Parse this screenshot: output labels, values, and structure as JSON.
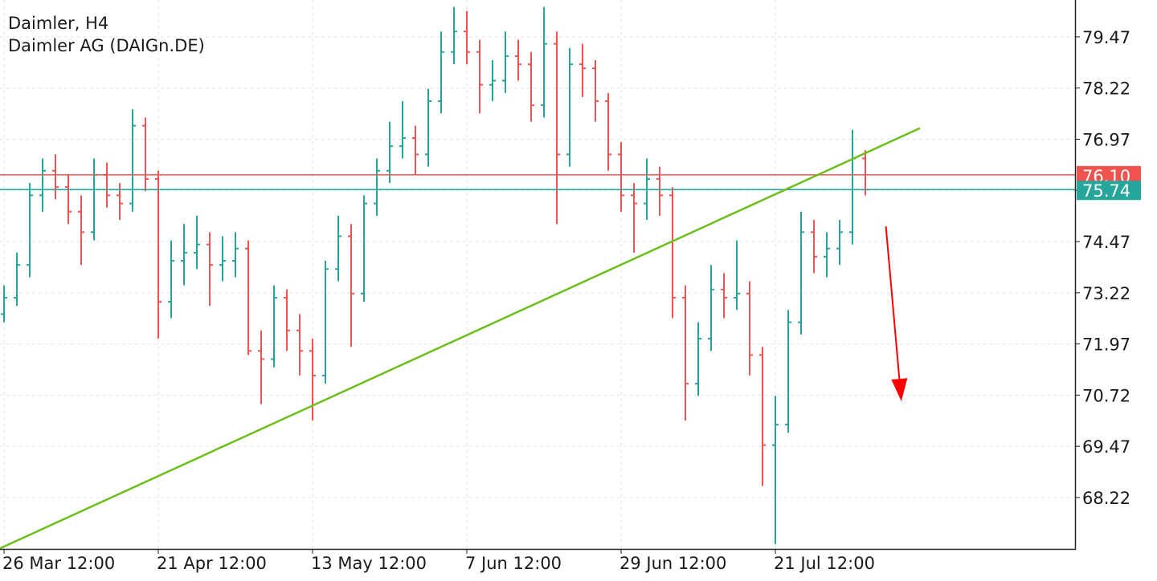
{
  "chart_data": {
    "type": "ohlc",
    "title": "Daimler, H4",
    "subtitle": "Daimler AG (DAIGn.DE)",
    "up_color": "#26a69a",
    "down_color": "#ef5350",
    "categories": [
      "26 Mar 12:00",
      null,
      null,
      null,
      null,
      null,
      null,
      null,
      null,
      null,
      null,
      null,
      "21 Apr 12:00",
      null,
      null,
      null,
      null,
      null,
      null,
      null,
      null,
      null,
      null,
      null,
      "13 May 12:00",
      null,
      null,
      null,
      null,
      null,
      null,
      null,
      null,
      null,
      null,
      null,
      "7 Jun 12:00",
      null,
      null,
      null,
      null,
      null,
      null,
      null,
      null,
      null,
      null,
      null,
      "29 Jun 12:00",
      null,
      null,
      null,
      null,
      null,
      null,
      null,
      null,
      null,
      null,
      null,
      "21 Jul 12:00",
      null,
      null,
      null,
      null,
      null,
      null,
      null
    ],
    "ohlc": [
      [
        72.7,
        73.4,
        72.5,
        73.1
      ],
      [
        73.1,
        74.2,
        72.9,
        73.9
      ],
      [
        73.9,
        75.9,
        73.6,
        75.6
      ],
      [
        75.6,
        76.5,
        75.2,
        76.2
      ],
      [
        76.2,
        76.6,
        75.5,
        75.8
      ],
      [
        75.8,
        76.1,
        74.9,
        75.2
      ],
      [
        75.2,
        75.6,
        73.9,
        74.7
      ],
      [
        74.7,
        76.5,
        74.5,
        76.1
      ],
      [
        76.1,
        76.4,
        75.3,
        75.6
      ],
      [
        75.6,
        75.9,
        75.0,
        75.4
      ],
      [
        75.4,
        77.7,
        75.2,
        77.3
      ],
      [
        77.3,
        77.5,
        75.7,
        76.0
      ],
      [
        76.0,
        76.2,
        72.1,
        73.0
      ],
      [
        73.0,
        74.5,
        72.6,
        74.0
      ],
      [
        74.0,
        74.9,
        73.4,
        74.2
      ],
      [
        74.2,
        75.1,
        73.8,
        74.4
      ],
      [
        74.4,
        74.7,
        72.9,
        73.9
      ],
      [
        73.9,
        74.6,
        73.5,
        74.0
      ],
      [
        74.0,
        74.7,
        73.6,
        74.3
      ],
      [
        74.3,
        74.5,
        71.7,
        71.8
      ],
      [
        71.8,
        72.3,
        70.5,
        71.6
      ],
      [
        71.6,
        73.4,
        71.4,
        73.1
      ],
      [
        73.1,
        73.3,
        71.8,
        72.3
      ],
      [
        72.3,
        72.7,
        71.2,
        71.8
      ],
      [
        71.8,
        72.1,
        70.1,
        71.2
      ],
      [
        71.2,
        74.0,
        71.0,
        73.8
      ],
      [
        73.8,
        75.1,
        73.5,
        74.6
      ],
      [
        74.6,
        74.9,
        71.9,
        73.2
      ],
      [
        73.2,
        75.6,
        73.0,
        75.4
      ],
      [
        75.4,
        76.5,
        75.1,
        76.2
      ],
      [
        76.2,
        77.4,
        75.9,
        76.8
      ],
      [
        76.8,
        77.9,
        76.5,
        77.0
      ],
      [
        77.0,
        77.3,
        76.1,
        76.6
      ],
      [
        76.6,
        78.2,
        76.3,
        77.9
      ],
      [
        77.9,
        79.6,
        77.6,
        79.1
      ],
      [
        79.1,
        80.2,
        78.8,
        79.6
      ],
      [
        79.6,
        80.1,
        78.8,
        79.1
      ],
      [
        79.1,
        79.4,
        77.6,
        78.3
      ],
      [
        78.3,
        78.9,
        77.9,
        78.4
      ],
      [
        78.4,
        79.6,
        78.1,
        79.0
      ],
      [
        79.0,
        79.4,
        78.4,
        78.8
      ],
      [
        78.8,
        79.1,
        77.4,
        77.8
      ],
      [
        77.8,
        80.2,
        77.5,
        79.3
      ],
      [
        79.3,
        79.6,
        74.9,
        76.6
      ],
      [
        76.6,
        79.2,
        76.3,
        78.8
      ],
      [
        78.8,
        79.3,
        78.0,
        78.7
      ],
      [
        78.7,
        78.9,
        77.4,
        77.9
      ],
      [
        77.9,
        78.1,
        76.2,
        76.6
      ],
      [
        76.6,
        76.9,
        75.2,
        75.6
      ],
      [
        75.6,
        75.9,
        74.2,
        75.4
      ],
      [
        75.4,
        76.5,
        75.0,
        76.0
      ],
      [
        76.0,
        76.3,
        75.1,
        75.6
      ],
      [
        75.6,
        75.8,
        72.6,
        73.1
      ],
      [
        73.1,
        73.4,
        70.1,
        71.0
      ],
      [
        71.0,
        72.5,
        70.7,
        72.1
      ],
      [
        72.1,
        73.9,
        71.8,
        73.3
      ],
      [
        73.3,
        73.7,
        72.6,
        73.1
      ],
      [
        73.1,
        74.5,
        72.8,
        73.2
      ],
      [
        73.2,
        73.5,
        71.2,
        71.7
      ],
      [
        71.7,
        71.9,
        68.5,
        69.5
      ],
      [
        69.5,
        70.7,
        67.08,
        70.0
      ],
      [
        70.0,
        72.8,
        69.8,
        72.5
      ],
      [
        72.5,
        75.2,
        72.2,
        74.7
      ],
      [
        74.7,
        75.0,
        73.7,
        74.1
      ],
      [
        74.1,
        74.7,
        73.6,
        74.3
      ],
      [
        74.3,
        75.0,
        73.9,
        74.7
      ],
      [
        74.7,
        77.2,
        74.4,
        76.5
      ],
      [
        76.5,
        76.7,
        75.6,
        75.74
      ]
    ],
    "ylim": [
      66.965,
      80.37
    ],
    "yticks": [
      68.22,
      69.47,
      70.72,
      71.97,
      73.22,
      74.47,
      75.72,
      76.97,
      78.22,
      79.47
    ],
    "grid": true,
    "price_lines": [
      {
        "value": 76.1,
        "label": "76.10",
        "color": "#ef5350"
      },
      {
        "value": 75.74,
        "color": "#26a69a"
      }
    ],
    "trendline": {
      "x": [
        -0.3,
        71.25
      ],
      "y": [
        66.98,
        77.24
      ],
      "color": "#6cbf1a"
    },
    "arrow": {
      "x": [
        68.6,
        69.8
      ],
      "y": [
        74.84,
        70.57
      ],
      "color": "#ff0000"
    }
  }
}
